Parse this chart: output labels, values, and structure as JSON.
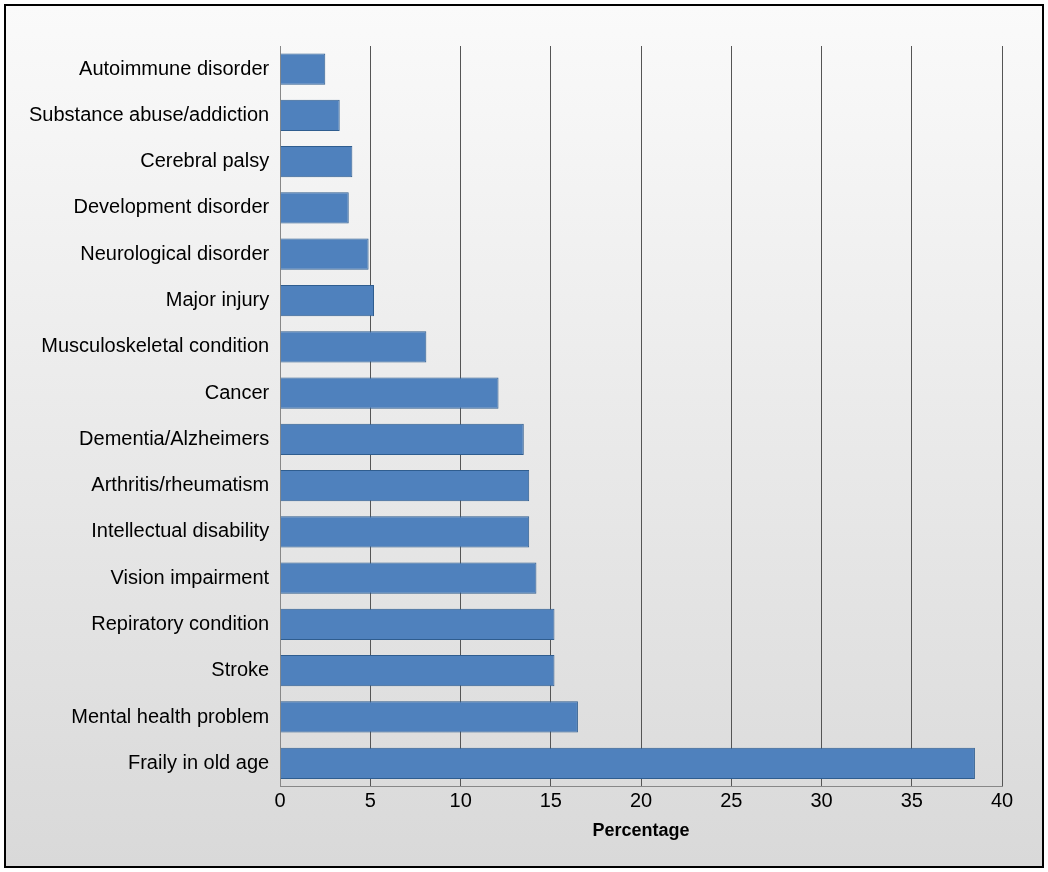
{
  "chart_data": {
    "type": "bar",
    "orientation": "horizontal",
    "xlabel": "Percentage",
    "categories": [
      "Autoimmune disorder",
      "Substance abuse/addiction",
      "Cerebral palsy",
      "Development disorder",
      "Neurological disorder",
      "Major injury",
      "Musculoskeletal condition",
      "Cancer",
      "Dementia/Alzheimers",
      "Arthritis/rheumatism",
      "Intellectual disability",
      "Vision impairment",
      "Repiratory condition",
      "Stroke",
      "Mental health problem",
      "Fraily in old age"
    ],
    "values": [
      2.5,
      3.3,
      4.0,
      3.8,
      4.9,
      5.2,
      8.1,
      12.1,
      13.5,
      13.8,
      13.8,
      14.2,
      15.2,
      15.2,
      16.5,
      38.5
    ],
    "color": "#4f81bd",
    "xlim": [
      0,
      40
    ],
    "xticks": [
      0,
      5,
      10,
      15,
      20,
      25,
      30,
      35,
      40
    ],
    "grid": "x",
    "legend": false
  }
}
